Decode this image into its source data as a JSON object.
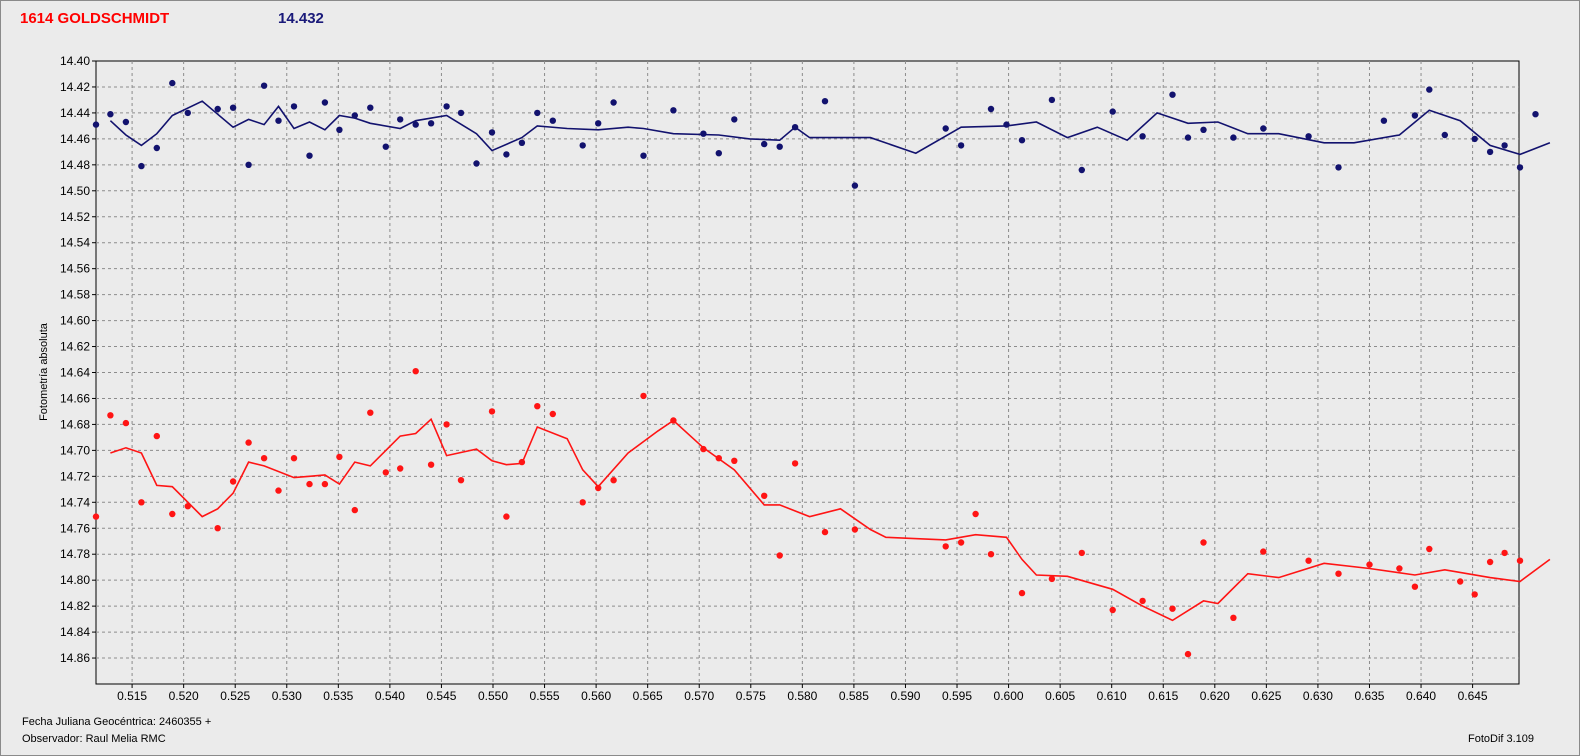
{
  "header": {
    "object_name": "1614 GOLDSCHMIDT",
    "reference_mag": "14.432"
  },
  "footer": {
    "date_label": "Fecha Juliana Geocéntrica: 2460355 +",
    "observer": "Observador: Raul Melia RMC",
    "version": "FotoDif 3.109"
  },
  "colors": {
    "background": "#ebebeb",
    "blue_series": "#12126e",
    "red_series": "#ff1414",
    "grid": "#8c8c8c"
  },
  "chart_data": {
    "type": "scatter",
    "ylabel": "Fotometría absoluta",
    "xlabel": "Fecha Juliana Geocéntrica: 2460355 +",
    "xlim": [
      0.5115,
      0.6495
    ],
    "ylim": [
      14.88,
      14.4
    ],
    "y_inverted": true,
    "grid": true,
    "x_ticks": [
      "0.515",
      "0.520",
      "0.525",
      "0.530",
      "0.535",
      "0.540",
      "0.545",
      "0.550",
      "0.555",
      "0.560",
      "0.565",
      "0.570",
      "0.575",
      "0.580",
      "0.585",
      "0.590",
      "0.595",
      "0.600",
      "0.605",
      "0.610",
      "0.615",
      "0.620",
      "0.625",
      "0.630",
      "0.635",
      "0.640",
      "0.645"
    ],
    "y_ticks": [
      "14.40",
      "14.42",
      "14.44",
      "14.46",
      "14.48",
      "14.50",
      "14.52",
      "14.54",
      "14.56",
      "14.58",
      "14.60",
      "14.62",
      "14.64",
      "14.66",
      "14.68",
      "14.70",
      "14.72",
      "14.74",
      "14.76",
      "14.78",
      "14.80",
      "14.82",
      "14.84",
      "14.86"
    ],
    "series": [
      {
        "color": "#12126e",
        "points": [
          [
            0.5115,
            14.449
          ],
          [
            0.5129,
            14.441
          ],
          [
            0.5144,
            14.447
          ],
          [
            0.5159,
            14.481
          ],
          [
            0.5174,
            14.467
          ],
          [
            0.5189,
            14.417
          ],
          [
            0.5204,
            14.44
          ],
          [
            0.5233,
            14.437
          ],
          [
            0.5248,
            14.436
          ],
          [
            0.5263,
            14.48
          ],
          [
            0.5278,
            14.419
          ],
          [
            0.5292,
            14.446
          ],
          [
            0.5307,
            14.435
          ],
          [
            0.5322,
            14.473
          ],
          [
            0.5337,
            14.432
          ],
          [
            0.5351,
            14.453
          ],
          [
            0.5366,
            14.442
          ],
          [
            0.5381,
            14.436
          ],
          [
            0.5396,
            14.466
          ],
          [
            0.541,
            14.445
          ],
          [
            0.5425,
            14.449
          ],
          [
            0.544,
            14.448
          ],
          [
            0.5455,
            14.435
          ],
          [
            0.5469,
            14.44
          ],
          [
            0.5484,
            14.479
          ],
          [
            0.5499,
            14.455
          ],
          [
            0.5513,
            14.472
          ],
          [
            0.5528,
            14.463
          ],
          [
            0.5543,
            14.44
          ],
          [
            0.5558,
            14.446
          ],
          [
            0.5587,
            14.465
          ],
          [
            0.5602,
            14.448
          ],
          [
            0.5617,
            14.432
          ],
          [
            0.5646,
            14.473
          ],
          [
            0.5675,
            14.438
          ],
          [
            0.5704,
            14.456
          ],
          [
            0.5719,
            14.471
          ],
          [
            0.5734,
            14.445
          ],
          [
            0.5763,
            14.464
          ],
          [
            0.5778,
            14.466
          ],
          [
            0.5793,
            14.451
          ],
          [
            0.5822,
            14.431
          ],
          [
            0.5851,
            14.496
          ],
          [
            0.5939,
            14.452
          ],
          [
            0.5954,
            14.465
          ],
          [
            0.5983,
            14.437
          ],
          [
            0.5998,
            14.449
          ],
          [
            0.6013,
            14.461
          ],
          [
            0.6042,
            14.43
          ],
          [
            0.6071,
            14.484
          ],
          [
            0.6101,
            14.439
          ],
          [
            0.613,
            14.458
          ],
          [
            0.6159,
            14.426
          ],
          [
            0.6174,
            14.459
          ],
          [
            0.6189,
            14.453
          ],
          [
            0.6218,
            14.459
          ],
          [
            0.6247,
            14.452
          ],
          [
            0.6291,
            14.458
          ],
          [
            0.632,
            14.482
          ],
          [
            0.6364,
            14.446
          ],
          [
            0.6394,
            14.442
          ],
          [
            0.6408,
            14.422
          ],
          [
            0.6423,
            14.457
          ],
          [
            0.6452,
            14.46
          ],
          [
            0.6467,
            14.47
          ],
          [
            0.6481,
            14.465
          ],
          [
            0.6496,
            14.482
          ],
          [
            0.6511,
            14.441
          ]
        ],
        "trend": [
          [
            0.5129,
            14.446
          ],
          [
            0.5144,
            14.457
          ],
          [
            0.5159,
            14.465
          ],
          [
            0.5174,
            14.456
          ],
          [
            0.5189,
            14.442
          ],
          [
            0.5218,
            14.431
          ],
          [
            0.5248,
            14.451
          ],
          [
            0.5263,
            14.445
          ],
          [
            0.5278,
            14.449
          ],
          [
            0.5292,
            14.435
          ],
          [
            0.5307,
            14.452
          ],
          [
            0.5322,
            14.447
          ],
          [
            0.5337,
            14.453
          ],
          [
            0.5351,
            14.442
          ],
          [
            0.5366,
            14.444
          ],
          [
            0.5381,
            14.448
          ],
          [
            0.541,
            14.452
          ],
          [
            0.5425,
            14.446
          ],
          [
            0.5455,
            14.442
          ],
          [
            0.5484,
            14.456
          ],
          [
            0.5499,
            14.469
          ],
          [
            0.5528,
            14.459
          ],
          [
            0.5543,
            14.45
          ],
          [
            0.5572,
            14.452
          ],
          [
            0.5602,
            14.453
          ],
          [
            0.5631,
            14.451
          ],
          [
            0.5646,
            14.452
          ],
          [
            0.5675,
            14.456
          ],
          [
            0.5719,
            14.457
          ],
          [
            0.5749,
            14.46
          ],
          [
            0.5778,
            14.461
          ],
          [
            0.5793,
            14.451
          ],
          [
            0.5807,
            14.459
          ],
          [
            0.5866,
            14.459
          ],
          [
            0.591,
            14.471
          ],
          [
            0.5954,
            14.451
          ],
          [
            0.5998,
            14.45
          ],
          [
            0.6027,
            14.447
          ],
          [
            0.6057,
            14.459
          ],
          [
            0.6086,
            14.451
          ],
          [
            0.6115,
            14.461
          ],
          [
            0.6144,
            14.44
          ],
          [
            0.6174,
            14.448
          ],
          [
            0.6203,
            14.447
          ],
          [
            0.6232,
            14.456
          ],
          [
            0.6262,
            14.456
          ],
          [
            0.6306,
            14.463
          ],
          [
            0.6335,
            14.463
          ],
          [
            0.6379,
            14.457
          ],
          [
            0.6408,
            14.438
          ],
          [
            0.6438,
            14.446
          ],
          [
            0.6467,
            14.465
          ],
          [
            0.6496,
            14.472
          ],
          [
            0.6525,
            14.463
          ]
        ]
      },
      {
        "color": "#ff1414",
        "points": [
          [
            0.5115,
            14.751
          ],
          [
            0.5129,
            14.673
          ],
          [
            0.5144,
            14.679
          ],
          [
            0.5159,
            14.74
          ],
          [
            0.5174,
            14.689
          ],
          [
            0.5189,
            14.749
          ],
          [
            0.5204,
            14.743
          ],
          [
            0.5233,
            14.76
          ],
          [
            0.5248,
            14.724
          ],
          [
            0.5263,
            14.694
          ],
          [
            0.5278,
            14.706
          ],
          [
            0.5292,
            14.731
          ],
          [
            0.5307,
            14.706
          ],
          [
            0.5322,
            14.726
          ],
          [
            0.5337,
            14.726
          ],
          [
            0.5351,
            14.705
          ],
          [
            0.5366,
            14.746
          ],
          [
            0.5381,
            14.671
          ],
          [
            0.5396,
            14.717
          ],
          [
            0.541,
            14.714
          ],
          [
            0.5425,
            14.639
          ],
          [
            0.544,
            14.711
          ],
          [
            0.5455,
            14.68
          ],
          [
            0.5469,
            14.723
          ],
          [
            0.5499,
            14.67
          ],
          [
            0.5513,
            14.751
          ],
          [
            0.5528,
            14.709
          ],
          [
            0.5543,
            14.666
          ],
          [
            0.5558,
            14.672
          ],
          [
            0.5587,
            14.74
          ],
          [
            0.5602,
            14.729
          ],
          [
            0.5617,
            14.723
          ],
          [
            0.5646,
            14.658
          ],
          [
            0.5675,
            14.677
          ],
          [
            0.5704,
            14.699
          ],
          [
            0.5719,
            14.706
          ],
          [
            0.5734,
            14.708
          ],
          [
            0.5763,
            14.735
          ],
          [
            0.5778,
            14.781
          ],
          [
            0.5793,
            14.71
          ],
          [
            0.5822,
            14.763
          ],
          [
            0.5851,
            14.761
          ],
          [
            0.5939,
            14.774
          ],
          [
            0.5954,
            14.771
          ],
          [
            0.5968,
            14.749
          ],
          [
            0.5983,
            14.78
          ],
          [
            0.6013,
            14.81
          ],
          [
            0.6042,
            14.799
          ],
          [
            0.6071,
            14.779
          ],
          [
            0.6101,
            14.823
          ],
          [
            0.613,
            14.816
          ],
          [
            0.6159,
            14.822
          ],
          [
            0.6174,
            14.857
          ],
          [
            0.6189,
            14.771
          ],
          [
            0.6218,
            14.829
          ],
          [
            0.6247,
            14.778
          ],
          [
            0.6291,
            14.785
          ],
          [
            0.632,
            14.795
          ],
          [
            0.635,
            14.788
          ],
          [
            0.6379,
            14.791
          ],
          [
            0.6394,
            14.805
          ],
          [
            0.6408,
            14.776
          ],
          [
            0.6438,
            14.801
          ],
          [
            0.6452,
            14.811
          ],
          [
            0.6467,
            14.786
          ],
          [
            0.6481,
            14.779
          ],
          [
            0.6496,
            14.785
          ]
        ],
        "trend": [
          [
            0.5129,
            14.702
          ],
          [
            0.5144,
            14.698
          ],
          [
            0.5159,
            14.702
          ],
          [
            0.5174,
            14.727
          ],
          [
            0.5189,
            14.728
          ],
          [
            0.5218,
            14.751
          ],
          [
            0.5233,
            14.745
          ],
          [
            0.5248,
            14.733
          ],
          [
            0.5263,
            14.709
          ],
          [
            0.5278,
            14.712
          ],
          [
            0.5307,
            14.721
          ],
          [
            0.5322,
            14.72
          ],
          [
            0.5337,
            14.719
          ],
          [
            0.5351,
            14.726
          ],
          [
            0.5366,
            14.709
          ],
          [
            0.5381,
            14.712
          ],
          [
            0.541,
            14.689
          ],
          [
            0.5425,
            14.687
          ],
          [
            0.544,
            14.676
          ],
          [
            0.5455,
            14.704
          ],
          [
            0.5484,
            14.699
          ],
          [
            0.5499,
            14.708
          ],
          [
            0.5513,
            14.711
          ],
          [
            0.5528,
            14.71
          ],
          [
            0.5543,
            14.682
          ],
          [
            0.5572,
            14.691
          ],
          [
            0.5587,
            14.715
          ],
          [
            0.5602,
            14.728
          ],
          [
            0.5631,
            14.702
          ],
          [
            0.566,
            14.685
          ],
          [
            0.5675,
            14.677
          ],
          [
            0.5704,
            14.698
          ],
          [
            0.5734,
            14.715
          ],
          [
            0.5763,
            14.742
          ],
          [
            0.5778,
            14.742
          ],
          [
            0.5807,
            14.751
          ],
          [
            0.5837,
            14.745
          ],
          [
            0.5866,
            14.761
          ],
          [
            0.5881,
            14.767
          ],
          [
            0.5939,
            14.769
          ],
          [
            0.5968,
            14.765
          ],
          [
            0.5998,
            14.767
          ],
          [
            0.6013,
            14.784
          ],
          [
            0.6027,
            14.796
          ],
          [
            0.6057,
            14.797
          ],
          [
            0.6101,
            14.807
          ],
          [
            0.613,
            14.82
          ],
          [
            0.6159,
            14.831
          ],
          [
            0.6189,
            14.816
          ],
          [
            0.6203,
            14.818
          ],
          [
            0.6232,
            14.795
          ],
          [
            0.6262,
            14.798
          ],
          [
            0.6306,
            14.787
          ],
          [
            0.635,
            14.791
          ],
          [
            0.6394,
            14.796
          ],
          [
            0.6423,
            14.792
          ],
          [
            0.6467,
            14.798
          ],
          [
            0.6496,
            14.801
          ],
          [
            0.6525,
            14.784
          ]
        ]
      }
    ]
  }
}
